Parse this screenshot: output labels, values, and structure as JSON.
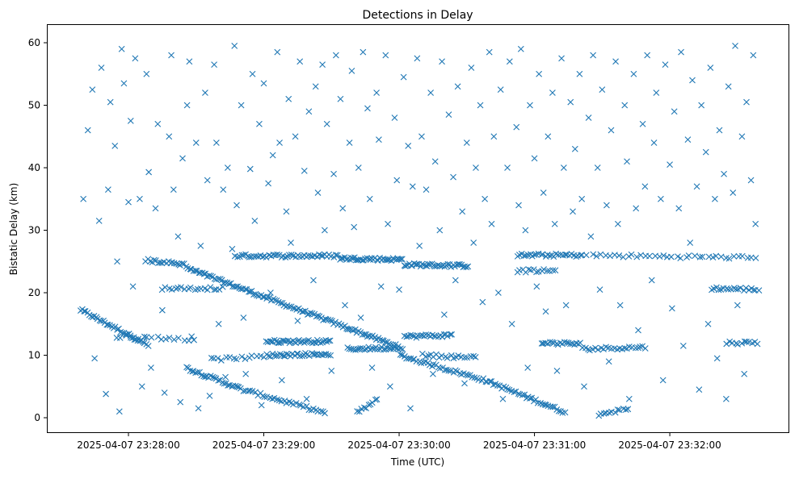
{
  "chart_data": {
    "type": "scatter",
    "title": "Detections in Delay",
    "xlabel": "Time (UTC)",
    "ylabel": "Bistatic Delay (km)",
    "x_units": "seconds after 2025-04-07 23:27:00",
    "xlim": [
      23,
      355
    ],
    "ylim": [
      -3,
      63
    ],
    "grid": false,
    "marker": "x",
    "color": "#1f77b4",
    "x_ticks": [
      {
        "value": 60,
        "label": "2025-04-07 23:28:00"
      },
      {
        "value": 120,
        "label": "2025-04-07 23:29:00"
      },
      {
        "value": 180,
        "label": "2025-04-07 23:30:00"
      },
      {
        "value": 240,
        "label": "2025-04-07 23:31:00"
      },
      {
        "value": 300,
        "label": "2025-04-07 23:32:00"
      }
    ],
    "y_ticks": [
      {
        "value": 0,
        "label": "0"
      },
      {
        "value": 10,
        "label": "10"
      },
      {
        "value": 20,
        "label": "20"
      },
      {
        "value": 30,
        "label": "30"
      },
      {
        "value": 40,
        "label": "40"
      },
      {
        "value": 50,
        "label": "50"
      },
      {
        "value": 60,
        "label": "60"
      }
    ],
    "tracks": [
      {
        "t0": 38.5,
        "d0": 17.3,
        "t1": 69.3,
        "d1": 11.5,
        "n": 40
      },
      {
        "t0": 85.4,
        "d0": 24.0,
        "t1": 180,
        "d1": 11.3,
        "n": 120
      },
      {
        "t0": 180,
        "d0": 10.0,
        "t1": 218,
        "d1": 6.0,
        "n": 40
      },
      {
        "t0": 218,
        "d0": 6.0,
        "t1": 254,
        "d1": 0.8,
        "n": 40
      },
      {
        "t0": 85.4,
        "d0": 8.0,
        "t1": 110.5,
        "d1": 4.5,
        "n": 30
      },
      {
        "t0": 110.5,
        "d0": 4.5,
        "t1": 148,
        "d1": 0.7,
        "n": 35
      },
      {
        "t0": 161,
        "d0": 0.7,
        "t1": 171,
        "d1": 3.0,
        "n": 10
      },
      {
        "t0": 268,
        "d0": 0.5,
        "t1": 282.4,
        "d1": 1.5,
        "n": 12
      },
      {
        "t0": 107,
        "d0": 25.9,
        "t1": 153.5,
        "d1": 25.9,
        "n": 50
      },
      {
        "t0": 153.5,
        "d0": 25.5,
        "t1": 182,
        "d1": 25.3,
        "n": 40
      },
      {
        "t0": 182,
        "d0": 24.5,
        "t1": 211,
        "d1": 24.3,
        "n": 40
      },
      {
        "t0": 232,
        "d0": 26.0,
        "t1": 261,
        "d1": 26.0,
        "n": 30
      },
      {
        "t0": 261,
        "d0": 26.0,
        "t1": 340,
        "d1": 25.6,
        "n": 40
      },
      {
        "t0": 67.5,
        "d0": 25.2,
        "t1": 85.4,
        "d1": 24.5,
        "n": 20
      },
      {
        "t0": 318,
        "d0": 20.7,
        "t1": 340,
        "d1": 20.5,
        "n": 20
      },
      {
        "t0": 121,
        "d0": 12.2,
        "t1": 150,
        "d1": 12.2,
        "n": 40
      },
      {
        "t0": 121,
        "d0": 10.0,
        "t1": 150,
        "d1": 10.2,
        "n": 35
      },
      {
        "t0": 96,
        "d0": 9.3,
        "t1": 121,
        "d1": 9.8,
        "n": 15
      },
      {
        "t0": 157,
        "d0": 11.0,
        "t1": 182,
        "d1": 11.2,
        "n": 30
      },
      {
        "t0": 182,
        "d0": 13.0,
        "t1": 204,
        "d1": 13.2,
        "n": 25
      },
      {
        "t0": 243,
        "d0": 12.0,
        "t1": 261,
        "d1": 11.8,
        "n": 20
      },
      {
        "t0": 261,
        "d0": 11.0,
        "t1": 290,
        "d1": 11.3,
        "n": 25
      },
      {
        "t0": 325,
        "d0": 12.0,
        "t1": 340,
        "d1": 12.0,
        "n": 12
      },
      {
        "t0": 74.7,
        "d0": 20.7,
        "t1": 103,
        "d1": 20.7,
        "n": 20
      },
      {
        "t0": 232,
        "d0": 23.5,
        "t1": 250,
        "d1": 23.5,
        "n": 15
      },
      {
        "t0": 54,
        "d0": 13.0,
        "t1": 90,
        "d1": 12.5,
        "n": 18
      },
      {
        "t0": 190,
        "d0": 10.0,
        "t1": 215,
        "d1": 9.6,
        "n": 20
      }
    ],
    "points": [
      [
        40,
        35
      ],
      [
        42,
        46
      ],
      [
        44,
        52.5
      ],
      [
        45,
        9.5
      ],
      [
        47,
        31.5
      ],
      [
        48,
        56
      ],
      [
        50,
        3.8
      ],
      [
        51,
        36.5
      ],
      [
        52,
        50.5
      ],
      [
        54,
        43.5
      ],
      [
        55,
        25
      ],
      [
        56,
        1
      ],
      [
        57,
        59
      ],
      [
        58,
        53.5
      ],
      [
        60,
        34.5
      ],
      [
        61,
        47.5
      ],
      [
        62,
        21
      ],
      [
        63,
        57.5
      ],
      [
        65,
        35
      ],
      [
        66,
        5
      ],
      [
        68,
        55
      ],
      [
        69,
        39.3
      ],
      [
        70,
        8
      ],
      [
        72,
        33.5
      ],
      [
        73,
        47
      ],
      [
        75,
        17.2
      ],
      [
        76,
        4
      ],
      [
        78,
        45
      ],
      [
        79,
        58
      ],
      [
        80,
        36.5
      ],
      [
        82,
        29
      ],
      [
        83,
        2.5
      ],
      [
        84,
        41.5
      ],
      [
        86,
        50
      ],
      [
        87,
        57
      ],
      [
        88,
        13
      ],
      [
        90,
        44
      ],
      [
        91,
        1.5
      ],
      [
        92,
        27.5
      ],
      [
        94,
        52
      ],
      [
        95,
        38
      ],
      [
        96,
        3.5
      ],
      [
        98,
        56.5
      ],
      [
        99,
        44
      ],
      [
        100,
        15
      ],
      [
        102,
        36.5
      ],
      [
        103,
        6.5
      ],
      [
        104,
        40
      ],
      [
        106,
        27
      ],
      [
        107,
        59.5
      ],
      [
        108,
        34
      ],
      [
        110,
        50
      ],
      [
        111,
        16
      ],
      [
        112,
        7
      ],
      [
        114,
        39.8
      ],
      [
        115,
        55
      ],
      [
        116,
        31.5
      ],
      [
        118,
        47
      ],
      [
        119,
        2
      ],
      [
        120,
        53.5
      ],
      [
        122,
        37.5
      ],
      [
        123,
        20
      ],
      [
        124,
        42
      ],
      [
        126,
        58.5
      ],
      [
        127,
        44
      ],
      [
        128,
        6
      ],
      [
        130,
        33
      ],
      [
        131,
        51
      ],
      [
        132,
        28
      ],
      [
        134,
        45
      ],
      [
        135,
        15.5
      ],
      [
        136,
        57
      ],
      [
        138,
        39.5
      ],
      [
        139,
        3
      ],
      [
        140,
        49
      ],
      [
        142,
        22
      ],
      [
        143,
        53
      ],
      [
        144,
        36
      ],
      [
        146,
        56.5
      ],
      [
        147,
        30
      ],
      [
        148,
        47
      ],
      [
        150,
        7.5
      ],
      [
        151,
        39
      ],
      [
        152,
        58
      ],
      [
        154,
        51
      ],
      [
        155,
        33.5
      ],
      [
        156,
        18
      ],
      [
        158,
        44
      ],
      [
        159,
        55.5
      ],
      [
        160,
        30.5
      ],
      [
        162,
        40
      ],
      [
        163,
        16
      ],
      [
        164,
        58.5
      ],
      [
        166,
        49.5
      ],
      [
        167,
        35
      ],
      [
        168,
        8
      ],
      [
        170,
        52
      ],
      [
        171,
        44.5
      ],
      [
        172,
        21
      ],
      [
        174,
        58
      ],
      [
        175,
        31
      ],
      [
        176,
        5
      ],
      [
        178,
        48
      ],
      [
        179,
        38
      ],
      [
        180,
        20.5
      ],
      [
        182,
        54.5
      ],
      [
        184,
        43.5
      ],
      [
        185,
        1.5
      ],
      [
        186,
        37
      ],
      [
        188,
        57.5
      ],
      [
        189,
        27.5
      ],
      [
        190,
        45
      ],
      [
        192,
        36.5
      ],
      [
        194,
        52
      ],
      [
        195,
        7
      ],
      [
        196,
        41
      ],
      [
        198,
        30
      ],
      [
        199,
        57
      ],
      [
        200,
        16.5
      ],
      [
        202,
        48.5
      ],
      [
        204,
        38.5
      ],
      [
        205,
        22
      ],
      [
        206,
        53
      ],
      [
        208,
        33
      ],
      [
        209,
        5.5
      ],
      [
        210,
        44
      ],
      [
        212,
        56
      ],
      [
        213,
        28
      ],
      [
        214,
        40
      ],
      [
        216,
        50
      ],
      [
        217,
        18.5
      ],
      [
        218,
        35
      ],
      [
        220,
        58.5
      ],
      [
        221,
        31
      ],
      [
        222,
        45
      ],
      [
        224,
        20
      ],
      [
        225,
        52.5
      ],
      [
        226,
        3
      ],
      [
        228,
        40
      ],
      [
        229,
        57
      ],
      [
        230,
        15
      ],
      [
        232,
        46.5
      ],
      [
        233,
        34
      ],
      [
        234,
        59
      ],
      [
        236,
        30
      ],
      [
        237,
        8
      ],
      [
        238,
        50
      ],
      [
        240,
        41.5
      ],
      [
        241,
        21
      ],
      [
        242,
        55
      ],
      [
        244,
        36
      ],
      [
        245,
        17
      ],
      [
        246,
        45
      ],
      [
        248,
        52
      ],
      [
        249,
        31
      ],
      [
        250,
        7.5
      ],
      [
        252,
        57.5
      ],
      [
        253,
        40
      ],
      [
        254,
        18
      ],
      [
        256,
        50.5
      ],
      [
        257,
        33
      ],
      [
        258,
        43
      ],
      [
        260,
        55
      ],
      [
        261,
        35
      ],
      [
        262,
        5
      ],
      [
        264,
        48
      ],
      [
        265,
        29
      ],
      [
        266,
        58
      ],
      [
        268,
        40
      ],
      [
        269,
        20.5
      ],
      [
        270,
        52.5
      ],
      [
        272,
        34
      ],
      [
        273,
        9
      ],
      [
        274,
        46
      ],
      [
        276,
        57
      ],
      [
        277,
        31
      ],
      [
        278,
        18
      ],
      [
        280,
        50
      ],
      [
        281,
        41
      ],
      [
        282,
        3
      ],
      [
        284,
        55
      ],
      [
        285,
        33.5
      ],
      [
        286,
        14
      ],
      [
        288,
        47
      ],
      [
        289,
        37
      ],
      [
        290,
        58
      ],
      [
        292,
        22
      ],
      [
        293,
        44
      ],
      [
        294,
        52
      ],
      [
        296,
        35
      ],
      [
        297,
        6
      ],
      [
        298,
        56.5
      ],
      [
        300,
        40.5
      ],
      [
        301,
        17.5
      ],
      [
        302,
        49
      ],
      [
        304,
        33.5
      ],
      [
        305,
        58.5
      ],
      [
        306,
        11.5
      ],
      [
        308,
        44.5
      ],
      [
        309,
        28
      ],
      [
        310,
        54
      ],
      [
        312,
        37
      ],
      [
        313,
        4.5
      ],
      [
        314,
        50
      ],
      [
        316,
        42.5
      ],
      [
        317,
        15
      ],
      [
        318,
        56
      ],
      [
        320,
        35
      ],
      [
        321,
        9.5
      ],
      [
        322,
        46
      ],
      [
        324,
        39
      ],
      [
        325,
        3
      ],
      [
        326,
        53
      ],
      [
        328,
        36
      ],
      [
        329,
        59.5
      ],
      [
        330,
        18
      ],
      [
        332,
        45
      ],
      [
        333,
        7
      ],
      [
        334,
        50.5
      ],
      [
        336,
        38
      ],
      [
        337,
        58
      ],
      [
        338,
        31
      ]
    ]
  }
}
